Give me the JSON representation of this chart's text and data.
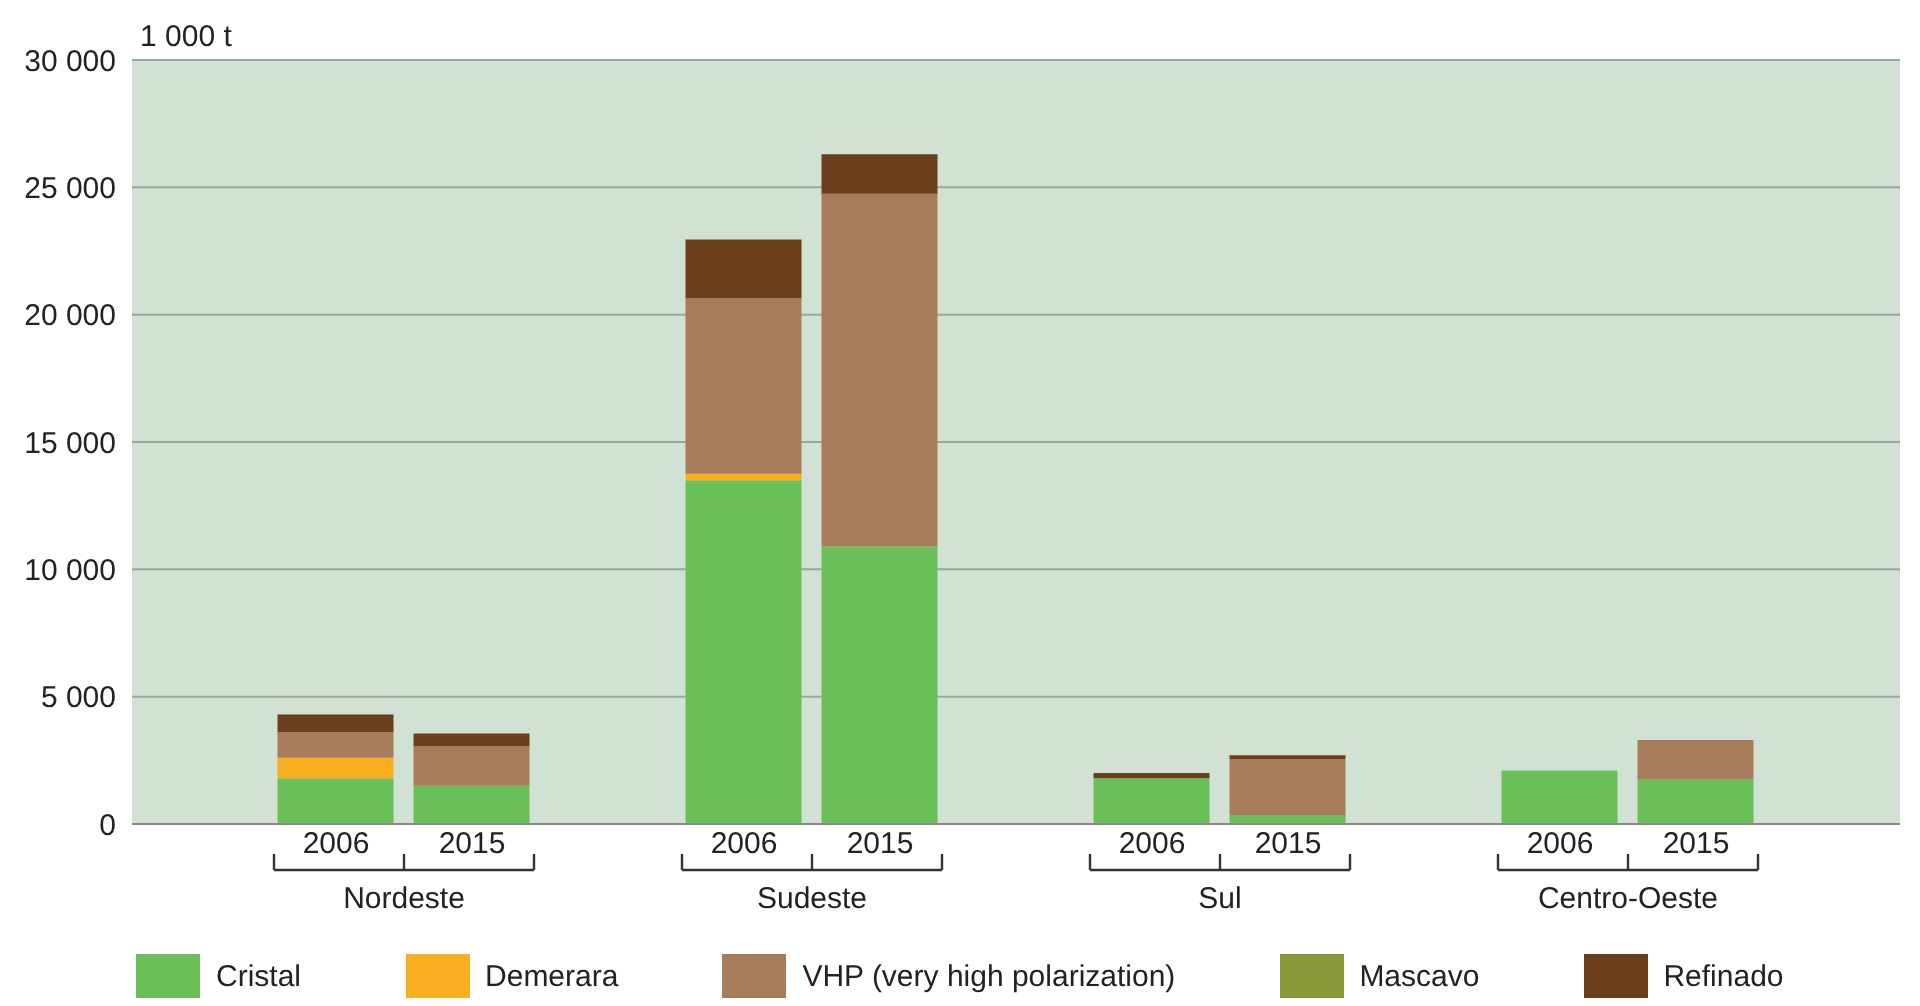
{
  "chart_data": {
    "type": "bar",
    "stacked": true,
    "ylabel": "1 000 t",
    "categories": [
      null,
      "2006",
      "2015",
      null,
      "2006",
      "2015",
      null,
      "2006",
      "2015",
      null,
      "2006",
      "2015",
      null
    ],
    "series": [
      {
        "name": "Cristal",
        "color": "#6bbf59",
        "values": [
          null,
          1800,
          1500,
          null,
          13500,
          10900,
          null,
          1800,
          350,
          null,
          2100,
          1750,
          null
        ]
      },
      {
        "name": "Demerara",
        "color": "#f9ae22",
        "values": [
          null,
          800,
          0,
          null,
          250,
          0,
          null,
          0,
          0,
          null,
          0,
          0,
          null
        ]
      },
      {
        "name": "VHP (very high polarization)",
        "color": "#a67c5b",
        "values": [
          null,
          1000,
          1550,
          null,
          6900,
          13850,
          null,
          0,
          2200,
          null,
          0,
          1550,
          null
        ]
      },
      {
        "name": "Mascavo",
        "color": "#8a9a3b",
        "values": [
          null,
          0,
          0,
          null,
          0,
          0,
          null,
          0,
          0,
          null,
          0,
          0,
          null
        ]
      },
      {
        "name": "Refinado",
        "color": "#6b3e1c",
        "values": [
          null,
          700,
          500,
          null,
          2300,
          1550,
          null,
          200,
          150,
          null,
          0,
          0,
          null
        ]
      }
    ],
    "annotations": [
      "Nordeste",
      "Sudeste",
      "Sul",
      "Centro-Oeste"
    ],
    "ylim": [
      0,
      30000
    ],
    "yticks": [
      {
        "value": 0,
        "label": "0"
      },
      {
        "value": 5000,
        "label": "5 000"
      },
      {
        "value": 10000,
        "label": "10 000"
      },
      {
        "value": 15000,
        "label": "15 000"
      },
      {
        "value": 20000,
        "label": "20 000"
      },
      {
        "value": 25000,
        "label": "25 000"
      },
      {
        "value": 30000,
        "label": "30 000"
      }
    ],
    "grid": "y",
    "legend": "bottom"
  }
}
